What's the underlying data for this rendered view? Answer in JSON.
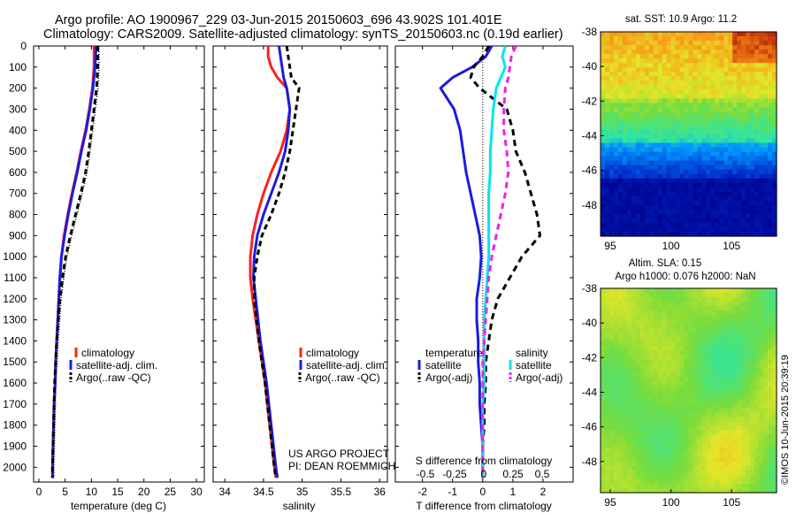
{
  "title_line1": "Argo profile: AO 1900967_229 03-Jun-2015 20150603_696 43.902S 101.401E",
  "title_line2": "Climatology: CARS2009. Satellite-adjusted climatology: synTS_20150603.nc (0.19d earlier)",
  "depth_ticks": [
    "0",
    "100",
    "200",
    "300",
    "400",
    "500",
    "600",
    "700",
    "800",
    "900",
    "1000",
    "1100",
    "1200",
    "1300",
    "1400",
    "1500",
    "1600",
    "1700",
    "1800",
    "1900",
    "2000"
  ],
  "panels": {
    "temperature": {
      "xlabel": "temperature (deg C)",
      "xticks": [
        "0",
        "5",
        "10",
        "15",
        "20",
        "25",
        "30"
      ],
      "legend": [
        "climatology",
        "satellite-adj. clim.",
        "Argo(..raw -QC)"
      ]
    },
    "salinity": {
      "xlabel": "salinity",
      "xticks": [
        "34",
        "34.5",
        "35",
        "35.5",
        "36"
      ],
      "legend": [
        "climatology",
        "satellite-adj. clim.",
        "Argo(..raw -QC)"
      ],
      "credit1": "US ARGO PROJECT",
      "credit2": "PI: DEAN ROEMMICH"
    },
    "difference": {
      "xlabel": "T difference from climatology",
      "s_label": "S difference from climatology",
      "xticks_t": [
        "-2",
        "-1",
        "0",
        "1",
        "2"
      ],
      "xticks_s": [
        "-0.5",
        "-0.25",
        "0",
        "0.25",
        "0.5"
      ],
      "legend_t_head": "temperature",
      "legend_s_head": "salinity",
      "legend_t": [
        "satellite",
        "Argo(-adj)"
      ],
      "legend_s": [
        "satellite",
        "Argo(-adj)"
      ]
    }
  },
  "maps": {
    "sst_title": "sat. SST: 10.9 Argo: 11.2",
    "sla_title1": "Altim. SLA: 0.15",
    "sla_title2": "Argo h1000: 0.076 h2000: NaN",
    "lat_ticks": [
      "-38",
      "-40",
      "-42",
      "-44",
      "-46",
      "-48"
    ],
    "lon_ticks": [
      "95",
      "100",
      "105"
    ],
    "watermark": "©IMOS 10-Jun-2015 20:39:19"
  },
  "colors": {
    "climatology": "#ff2020",
    "satellite": "#1c1cdc",
    "argo": "#000000",
    "sal_sat": "#00e5ee",
    "sal_argo": "#ee22ee"
  },
  "chart_data": [
    {
      "type": "line",
      "title": "",
      "xlabel": "temperature (deg C)",
      "ylabel": "",
      "xlim": [
        -1,
        31.5
      ],
      "ylim": [
        2070,
        0
      ],
      "series": [
        {
          "name": "climatology",
          "y": [
            0,
            100,
            200,
            300,
            400,
            500,
            600,
            700,
            800,
            900,
            1000,
            1100,
            1200,
            1300,
            1400,
            1500,
            1600,
            1700,
            1800,
            1900,
            2000,
            2050
          ],
          "x": [
            10.5,
            10.5,
            10.2,
            9.6,
            8.9,
            8.0,
            7.2,
            6.3,
            5.5,
            4.8,
            4.3,
            4.0,
            3.8,
            3.6,
            3.4,
            3.2,
            3.1,
            2.9,
            2.8,
            2.7,
            2.6,
            2.6
          ]
        },
        {
          "name": "satellite-adj. clim.",
          "y": [
            0,
            100,
            200,
            300,
            400,
            500,
            600,
            700,
            800,
            900,
            1000,
            1100,
            1200,
            1300,
            1400,
            1500,
            1600,
            1700,
            1800,
            1900,
            2000,
            2050
          ],
          "x": [
            10.9,
            10.7,
            10.3,
            9.7,
            9.0,
            8.1,
            7.3,
            6.4,
            5.6,
            4.9,
            4.3,
            4.0,
            3.8,
            3.6,
            3.4,
            3.2,
            3.1,
            2.9,
            2.8,
            2.7,
            2.6,
            2.6
          ]
        },
        {
          "name": "Argo(..raw -QC)",
          "y": [
            0,
            100,
            200,
            300,
            400,
            500,
            600,
            700,
            800,
            900,
            1000,
            1100,
            1200,
            1300,
            1400,
            1500,
            1600,
            1700,
            1800,
            1900,
            2000,
            2050
          ],
          "x": [
            11.2,
            11.2,
            11.0,
            10.5,
            10.0,
            9.5,
            8.9,
            8.0,
            7.0,
            6.0,
            5.1,
            4.5,
            4.0,
            3.7,
            3.4,
            3.2,
            3.0,
            2.9,
            2.8,
            2.7,
            2.6,
            2.6
          ]
        }
      ]
    },
    {
      "type": "line",
      "title": "",
      "xlabel": "salinity",
      "ylabel": "",
      "xlim": [
        33.85,
        36.1
      ],
      "ylim": [
        2070,
        0
      ],
      "series": [
        {
          "name": "climatology",
          "y": [
            0,
            50,
            100,
            150,
            200,
            300,
            400,
            500,
            600,
            700,
            800,
            900,
            1000,
            1100,
            1200,
            1400,
            1600,
            1800,
            2000,
            2050
          ],
          "x": [
            34.56,
            34.56,
            34.6,
            34.68,
            34.8,
            34.84,
            34.8,
            34.72,
            34.6,
            34.5,
            34.42,
            34.36,
            34.33,
            34.33,
            34.36,
            34.44,
            34.52,
            34.58,
            34.64,
            34.66
          ]
        },
        {
          "name": "satellite-adj. clim.",
          "y": [
            0,
            50,
            100,
            150,
            200,
            300,
            400,
            500,
            600,
            700,
            800,
            900,
            1000,
            1100,
            1200,
            1400,
            1600,
            1800,
            2000,
            2050
          ],
          "x": [
            34.7,
            34.72,
            34.74,
            34.76,
            34.8,
            34.84,
            34.82,
            34.78,
            34.7,
            34.6,
            34.5,
            34.42,
            34.38,
            34.37,
            34.4,
            34.46,
            34.54,
            34.6,
            34.66,
            34.68
          ]
        },
        {
          "name": "Argo(..raw -QC)",
          "y": [
            0,
            50,
            100,
            150,
            200,
            300,
            400,
            500,
            600,
            700,
            800,
            900,
            1000,
            1100,
            1200,
            1400,
            1600,
            1800,
            2000,
            2050
          ],
          "x": [
            34.8,
            34.82,
            34.84,
            34.86,
            34.96,
            34.92,
            34.88,
            34.84,
            34.78,
            34.7,
            34.6,
            34.48,
            34.42,
            34.38,
            34.38,
            34.44,
            34.52,
            34.58,
            34.64,
            34.66
          ]
        }
      ]
    },
    {
      "type": "line",
      "title": "",
      "xlabel": "T difference from climatology",
      "ylabel": "",
      "xlim": [
        -2.9,
        3.0
      ],
      "ylim": [
        2070,
        0
      ],
      "series": [
        {
          "name": "temperature satellite",
          "y": [
            0,
            50,
            100,
            150,
            200,
            300,
            400,
            500,
            600,
            700,
            800,
            900,
            1000,
            1100,
            1200,
            1300,
            1400,
            1500,
            1600,
            1700,
            1800,
            1900,
            2000,
            2050
          ],
          "x": [
            0.3,
            0.1,
            -0.35,
            -1.0,
            -1.4,
            -0.95,
            -0.75,
            -0.65,
            -0.55,
            -0.4,
            -0.25,
            -0.1,
            -0.05,
            -0.1,
            -0.2,
            -0.2,
            -0.15,
            -0.15,
            -0.1,
            -0.1,
            -0.05,
            0,
            0,
            0
          ]
        },
        {
          "name": "temperature Argo(-adj)",
          "y": [
            0,
            50,
            100,
            150,
            200,
            300,
            400,
            500,
            600,
            700,
            800,
            900,
            1000,
            1100,
            1200,
            1300,
            1400,
            1500,
            1600,
            1700,
            1800,
            1900,
            2000,
            2050
          ],
          "x": [
            0.2,
            0.0,
            -0.3,
            -0.4,
            -0.1,
            0.8,
            1.0,
            1.1,
            1.4,
            1.6,
            1.8,
            1.9,
            1.3,
            0.9,
            0.5,
            0.3,
            0.2,
            0.1,
            0.1,
            0.05,
            0.05,
            0,
            0,
            0
          ]
        },
        {
          "name": "salinity satellite",
          "y": [
            0,
            50,
            100,
            150,
            200,
            300,
            400,
            500,
            600,
            700,
            800,
            900,
            1000,
            1100,
            1200,
            1300,
            1400,
            1500,
            1600,
            1700,
            1800,
            1900,
            2000,
            2050
          ],
          "x": [
            0.75,
            0.65,
            0.75,
            0.6,
            0.45,
            0.35,
            0.3,
            0.25,
            0.25,
            0.2,
            0.2,
            0.2,
            0.2,
            0.15,
            0.1,
            0.05,
            0.05,
            0.05,
            0.05,
            0,
            0,
            0,
            0,
            0
          ]
        },
        {
          "name": "salinity Argo(-adj)",
          "y": [
            0,
            50,
            100,
            150,
            200,
            300,
            400,
            500,
            600,
            700,
            800,
            900,
            1000,
            1100,
            1200,
            1300,
            1400,
            1500,
            1600,
            1700,
            1800,
            1900,
            2000,
            2050
          ],
          "x": [
            1.1,
            0.95,
            0.9,
            0.85,
            0.75,
            0.7,
            0.7,
            0.8,
            0.85,
            0.75,
            0.6,
            0.45,
            0.3,
            0.2,
            0.15,
            0.1,
            0.05,
            0,
            0,
            0,
            0,
            0,
            0,
            0
          ]
        }
      ]
    }
  ]
}
